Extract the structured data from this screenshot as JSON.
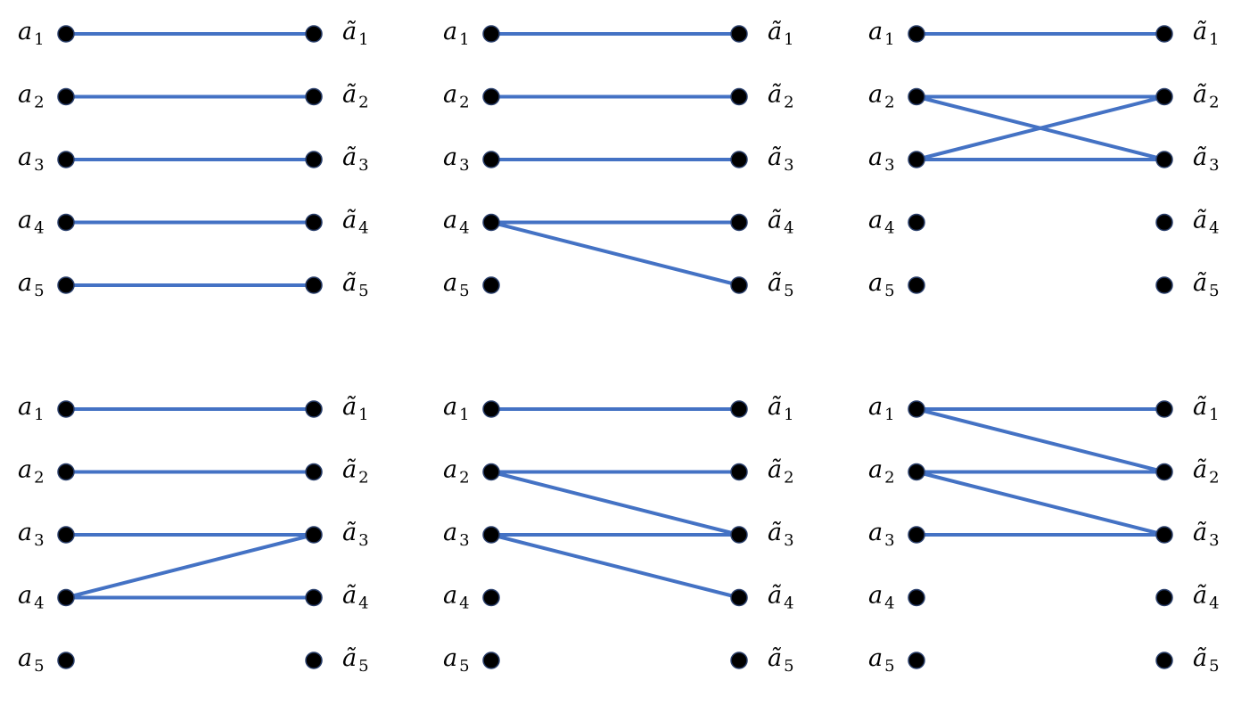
{
  "colors": {
    "edge": "#4472c4",
    "node": "#000000"
  },
  "left_label": "a",
  "right_label": "ã",
  "index_labels": [
    "1",
    "2",
    "3",
    "4",
    "5"
  ],
  "panels": [
    {
      "name": "panel-1",
      "edges": [
        [
          1,
          1
        ],
        [
          2,
          2
        ],
        [
          3,
          3
        ],
        [
          4,
          4
        ],
        [
          5,
          5
        ]
      ]
    },
    {
      "name": "panel-2",
      "edges": [
        [
          1,
          1
        ],
        [
          2,
          2
        ],
        [
          3,
          3
        ],
        [
          4,
          4
        ],
        [
          4,
          5
        ]
      ]
    },
    {
      "name": "panel-3",
      "edges": [
        [
          1,
          1
        ],
        [
          2,
          2
        ],
        [
          2,
          3
        ],
        [
          3,
          2
        ],
        [
          3,
          3
        ]
      ]
    },
    {
      "name": "panel-4",
      "edges": [
        [
          1,
          1
        ],
        [
          2,
          2
        ],
        [
          3,
          3
        ],
        [
          4,
          3
        ],
        [
          4,
          4
        ]
      ]
    },
    {
      "name": "panel-5",
      "edges": [
        [
          1,
          1
        ],
        [
          2,
          2
        ],
        [
          2,
          3
        ],
        [
          3,
          3
        ],
        [
          3,
          4
        ]
      ]
    },
    {
      "name": "panel-6",
      "edges": [
        [
          1,
          1
        ],
        [
          1,
          2
        ],
        [
          2,
          2
        ],
        [
          2,
          3
        ],
        [
          3,
          3
        ]
      ]
    }
  ]
}
